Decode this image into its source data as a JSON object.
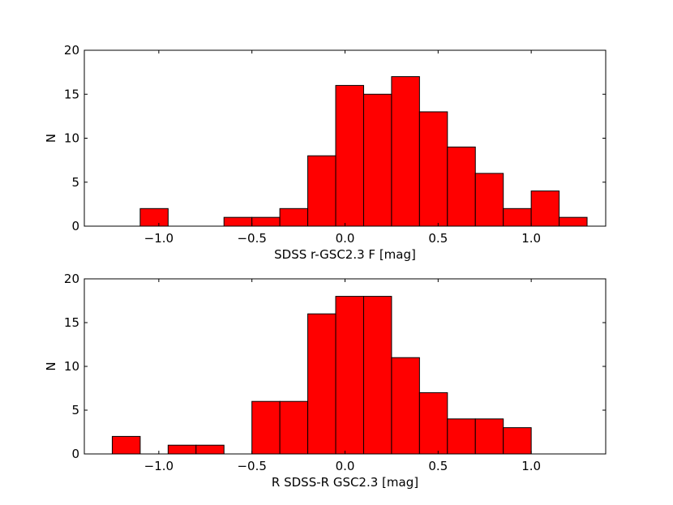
{
  "chart_data": [
    {
      "type": "bar",
      "subtype": "histogram",
      "xlabel": "SDSS r-GSC2.3 F [mag]",
      "ylabel": "N",
      "xlim": [
        -1.4,
        1.4
      ],
      "ylim": [
        0,
        20
      ],
      "xticks": [
        -1.0,
        -0.5,
        0.0,
        0.5,
        1.0
      ],
      "xtick_labels": [
        "−1.0",
        "−0.5",
        "0.0",
        "0.5",
        "1.0"
      ],
      "yticks": [
        0,
        5,
        10,
        15,
        20
      ],
      "ytick_labels": [
        "0",
        "5",
        "10",
        "15",
        "20"
      ],
      "bar_color": "#ff0000",
      "bins": [
        {
          "x0": -1.1,
          "x1": -0.95,
          "count": 2
        },
        {
          "x0": -0.65,
          "x1": -0.5,
          "count": 1
        },
        {
          "x0": -0.5,
          "x1": -0.35,
          "count": 1
        },
        {
          "x0": -0.35,
          "x1": -0.2,
          "count": 2
        },
        {
          "x0": -0.2,
          "x1": -0.05,
          "count": 8
        },
        {
          "x0": -0.05,
          "x1": 0.1,
          "count": 16
        },
        {
          "x0": 0.1,
          "x1": 0.25,
          "count": 15
        },
        {
          "x0": 0.25,
          "x1": 0.4,
          "count": 17
        },
        {
          "x0": 0.4,
          "x1": 0.55,
          "count": 13
        },
        {
          "x0": 0.55,
          "x1": 0.7,
          "count": 9
        },
        {
          "x0": 0.7,
          "x1": 0.85,
          "count": 6
        },
        {
          "x0": 0.85,
          "x1": 1.0,
          "count": 2
        },
        {
          "x0": 1.0,
          "x1": 1.15,
          "count": 4
        },
        {
          "x0": 1.15,
          "x1": 1.3,
          "count": 1
        }
      ]
    },
    {
      "type": "bar",
      "subtype": "histogram",
      "xlabel": "R SDSS-R GSC2.3 [mag]",
      "ylabel": "N",
      "xlim": [
        -1.4,
        1.4
      ],
      "ylim": [
        0,
        20
      ],
      "xticks": [
        -1.0,
        -0.5,
        0.0,
        0.5,
        1.0
      ],
      "xtick_labels": [
        "−1.0",
        "−0.5",
        "0.0",
        "0.5",
        "1.0"
      ],
      "yticks": [
        0,
        5,
        10,
        15,
        20
      ],
      "ytick_labels": [
        "0",
        "5",
        "10",
        "15",
        "20"
      ],
      "bar_color": "#ff0000",
      "bins": [
        {
          "x0": -1.25,
          "x1": -1.1,
          "count": 2
        },
        {
          "x0": -0.95,
          "x1": -0.8,
          "count": 1
        },
        {
          "x0": -0.8,
          "x1": -0.65,
          "count": 1
        },
        {
          "x0": -0.5,
          "x1": -0.35,
          "count": 6
        },
        {
          "x0": -0.35,
          "x1": -0.2,
          "count": 6
        },
        {
          "x0": -0.2,
          "x1": -0.05,
          "count": 16
        },
        {
          "x0": -0.05,
          "x1": 0.1,
          "count": 18
        },
        {
          "x0": 0.1,
          "x1": 0.25,
          "count": 18
        },
        {
          "x0": 0.25,
          "x1": 0.4,
          "count": 11
        },
        {
          "x0": 0.4,
          "x1": 0.55,
          "count": 7
        },
        {
          "x0": 0.55,
          "x1": 0.7,
          "count": 4
        },
        {
          "x0": 0.7,
          "x1": 0.85,
          "count": 4
        },
        {
          "x0": 0.85,
          "x1": 1.0,
          "count": 3
        }
      ]
    }
  ]
}
